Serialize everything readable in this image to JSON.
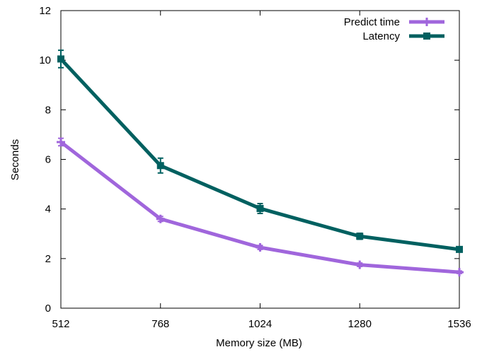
{
  "chart_data": {
    "type": "line",
    "xlabel": "Memory size (MB)",
    "ylabel": "Seconds",
    "x": [
      512,
      768,
      1024,
      1280,
      1536
    ],
    "xlim": [
      512,
      1536
    ],
    "ylim": [
      0,
      12
    ],
    "yticks": [
      0,
      2,
      4,
      6,
      8,
      10,
      12
    ],
    "grid": false,
    "legend_position": "top-right",
    "series": [
      {
        "name": "Predict time",
        "color": "#a066dc",
        "marker": "plus",
        "values": [
          6.7,
          3.6,
          2.45,
          1.75,
          1.45
        ],
        "errors": [
          0.15,
          0.1,
          0.08,
          0.07,
          0.05
        ]
      },
      {
        "name": "Latency",
        "color": "#006060",
        "marker": "filled-square",
        "values": [
          10.05,
          5.75,
          4.02,
          2.9,
          2.37
        ],
        "errors": [
          0.35,
          0.3,
          0.2,
          0.12,
          0.1
        ]
      }
    ]
  }
}
